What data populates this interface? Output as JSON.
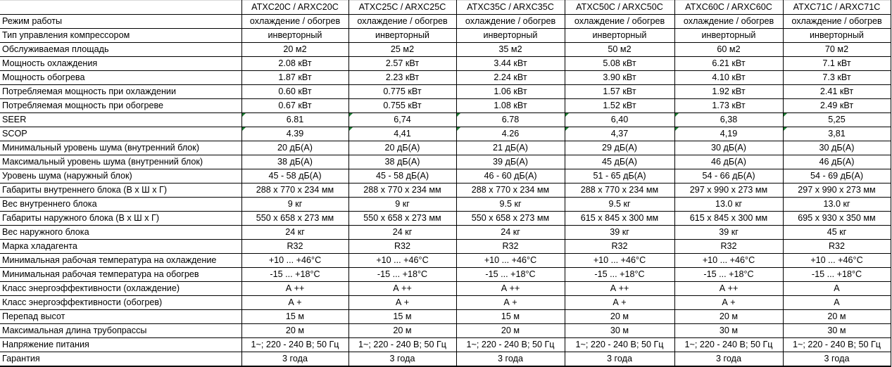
{
  "models": [
    "ATXC20C / ARXC20C",
    "ATXC25C / ARXC25C",
    "ATXC35C / ARXC35C",
    "ATXC50C / ARXC50C",
    "ATXC60C / ARXC60C",
    "ATXC71C / ARXC71C"
  ],
  "flag_color": "#1e7e34",
  "rows": [
    {
      "label": "Режим работы",
      "values": [
        "охлаждение / обогрев",
        "охлаждение / обогрев",
        "охлаждение / обогрев",
        "охлаждение / обогрев",
        "охлаждение / обогрев",
        "охлаждение / обогрев"
      ]
    },
    {
      "label": "Тип управления компрессором",
      "values": [
        "инверторный",
        "инверторный",
        "инверторный",
        "инверторный",
        "инверторный",
        "инверторный"
      ]
    },
    {
      "label": "Обслуживаемая площадь",
      "values": [
        "20 м2",
        "25 м2",
        "35 м2",
        "50 м2",
        "60 м2",
        "70 м2"
      ]
    },
    {
      "label": "Мощность охлаждения",
      "values": [
        "2.08 кВт",
        "2.57 кВт",
        "3.44 кВт",
        "5.08 кВт",
        "6.21 кВт",
        "7.1 кВт"
      ]
    },
    {
      "label": "Мощность обогрева",
      "values": [
        "1.87 кВт",
        "2.23 кВт",
        "2.24 кВт",
        "3.90 кВт",
        "4.10 кВт",
        "7.3 кВт"
      ]
    },
    {
      "label": "Потребляемая мощность при охлаждении",
      "values": [
        "0.60 кВт",
        "0.775 кВт",
        "1.06 кВт",
        "1.57 кВт",
        "1.92 кВт",
        "2.41 кВт"
      ]
    },
    {
      "label": "Потребляемая мощность при обогреве",
      "values": [
        "0.67 кВт",
        "0.755 кВт",
        "1.08 кВт",
        "1.52 кВт",
        "1.73 кВт",
        "2.49 кВт"
      ]
    },
    {
      "label": "SEER",
      "flagged": true,
      "values": [
        "6.81",
        "6,74",
        "6.78",
        "6,40",
        "6,38",
        "5,25"
      ]
    },
    {
      "label": "SCOP",
      "flagged": true,
      "values": [
        "4.39",
        "4,41",
        "4.26",
        "4,37",
        "4,19",
        "3,81"
      ]
    },
    {
      "label": "Минимальный уровень шума (внутренний блок)",
      "values": [
        "20 дБ(А)",
        "20 дБ(А)",
        "21 дБ(А)",
        "29 дБ(А)",
        "30 дБ(А)",
        "30 дБ(А)"
      ]
    },
    {
      "label": "Максимальный уровень шума (внутренний блок)",
      "values": [
        "38 дБ(А)",
        "38 дБ(А)",
        "39 дБ(А)",
        "45 дБ(А)",
        "46 дБ(А)",
        "46 дБ(А)"
      ]
    },
    {
      "label": "Уровень шума (наружный блок)",
      "values": [
        "45 - 58 дБ(А)",
        "45 - 58 дБ(А)",
        "46 - 60 дБ(А)",
        "51 - 65 дБ(А)",
        "54 - 66 дБ(А)",
        "54 - 69 дБ(А)"
      ]
    },
    {
      "label": "Габариты внутреннего блока (В х Ш х Г)",
      "values": [
        "288 х 770 х 234 мм",
        "288 х 770 х 234 мм",
        "288 х 770 х 234 мм",
        "288 х 770 х 234 мм",
        "297 х 990 х 273 мм",
        "297 х 990 х 273 мм"
      ]
    },
    {
      "label": "Вес внутреннего блока",
      "values": [
        "9 кг",
        "9 кг",
        "9.5 кг",
        "9.5 кг",
        "13.0 кг",
        "13.0 кг"
      ]
    },
    {
      "label": "Габариты наружного блока (В х Ш х Г)",
      "values": [
        "550 х 658 х 273 мм",
        "550 х 658 х 273 мм",
        "550 х 658 х 273 мм",
        "615 х 845 х 300 мм",
        "615 х 845 х 300 мм",
        "695 х 930 х 350 мм"
      ]
    },
    {
      "label": "Вес наружного блока",
      "values": [
        "24 кг",
        "24 кг",
        "24 кг",
        "39 кг",
        "39 кг",
        "45 кг"
      ]
    },
    {
      "label": "Марка хладагента",
      "values": [
        "R32",
        "R32",
        "R32",
        "R32",
        "R32",
        "R32"
      ]
    },
    {
      "label": "Минимальная рабочая температура на охлаждение",
      "values": [
        "+10 ... +46°С",
        "+10 ... +46°С",
        "+10 ... +46°С",
        "+10 ... +46°С",
        "+10 ... +46°С",
        "+10 ... +46°С"
      ]
    },
    {
      "label": "Минимальная рабочая температура на обогрев",
      "values": [
        "-15 ... +18°С",
        "-15 ... +18°С",
        "-15 ... +18°С",
        "-15 ... +18°С",
        "-15 ... +18°С",
        "-15 ... +18°С"
      ]
    },
    {
      "label": "Класс энергоэффективности (охлаждение)",
      "values": [
        "А ++",
        "А ++",
        "А ++",
        "А ++",
        "А ++",
        "А"
      ]
    },
    {
      "label": "Класс энергоэффективности (обогрев)",
      "values": [
        "А +",
        "А +",
        "А +",
        "А +",
        "А +",
        "А"
      ]
    },
    {
      "label": "Перепад высот",
      "values": [
        "15 м",
        "15 м",
        "15 м",
        "20 м",
        "20 м",
        "20 м"
      ]
    },
    {
      "label": "Максимальная длина трубопрассы",
      "values": [
        "20 м",
        "20 м",
        "20 м",
        "30 м",
        "30 м",
        "30 м"
      ]
    },
    {
      "label": "Напряжение питания",
      "values": [
        "1~; 220 - 240 В; 50 Гц",
        "1~; 220 - 240 В; 50 Гц",
        "1~; 220 - 240 В; 50 Гц",
        "1~; 220 - 240 В; 50 Гц",
        "1~; 220 - 240 В; 50 Гц",
        "1~; 220 - 240 В; 50 Гц"
      ]
    },
    {
      "label": "Гарантия",
      "values": [
        "3 года",
        "3 года",
        "3 года",
        "3 года",
        "3 года",
        "3 года"
      ]
    }
  ]
}
